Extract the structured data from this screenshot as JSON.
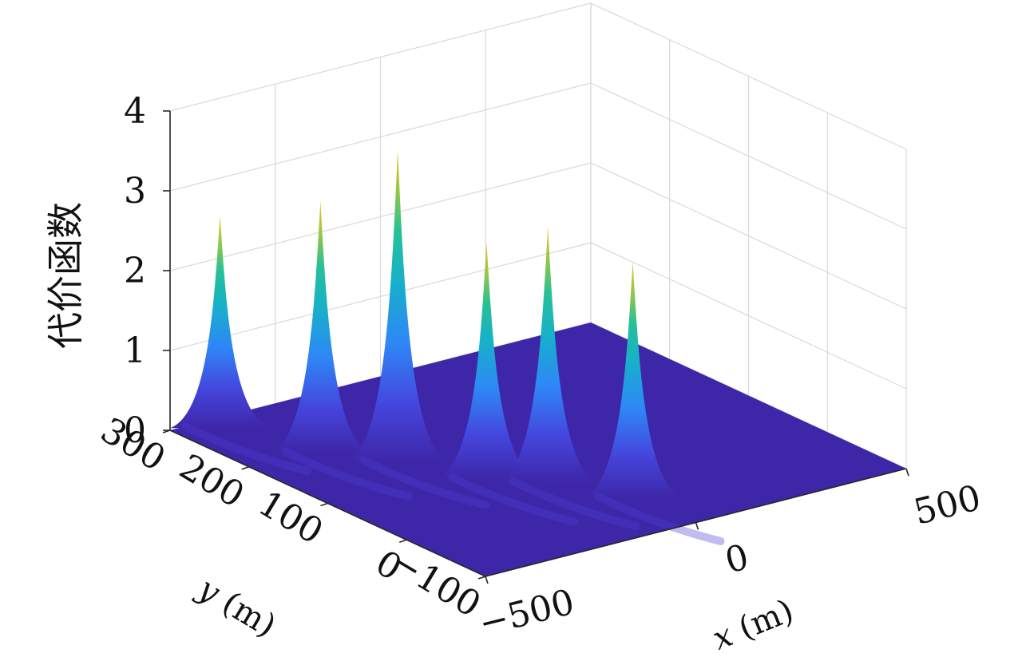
{
  "chart_data": {
    "type": "surface",
    "zlabel": "代价函数",
    "xlabel": "x (m)",
    "ylabel": "y (m)",
    "xlim": [
      -500,
      500
    ],
    "ylim": [
      -100,
      300
    ],
    "zlim": [
      0,
      4
    ],
    "x_ticks": [
      "−500",
      "0",
      "500"
    ],
    "y_ticks": [
      "300",
      "200",
      "100",
      "0",
      "−100"
    ],
    "z_ticks": [
      "0",
      "1",
      "2",
      "3",
      "4"
    ],
    "grid": true,
    "colormap": "parula",
    "base_color": "#3e26a8",
    "peaks": [
      {
        "x": -400,
        "y": 290,
        "z": 2.6
      },
      {
        "x": -330,
        "y": 200,
        "z": 3.1
      },
      {
        "x": -240,
        "y": 150,
        "z": 3.85
      },
      {
        "x": -160,
        "y": 80,
        "z": 2.9
      },
      {
        "x": -80,
        "y": 45,
        "z": 3.15
      },
      {
        "x": 0,
        "y": -20,
        "z": 2.9
      }
    ]
  }
}
